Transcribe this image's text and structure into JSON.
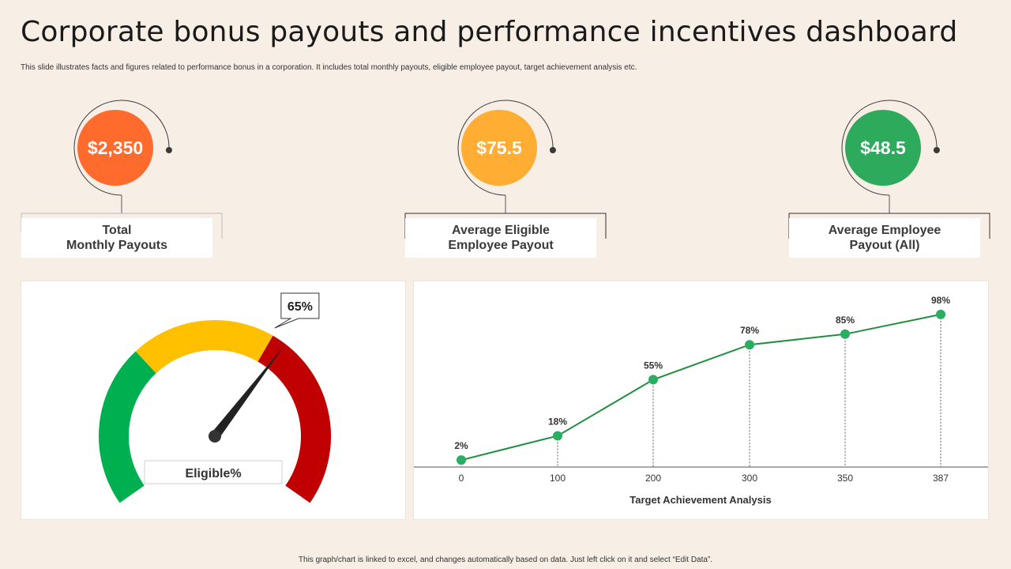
{
  "header": {
    "title": "Corporate bonus payouts and performance incentives dashboard",
    "subtitle": "This slide illustrates facts and figures related to performance bonus in a corporation. It includes total monthly payouts, eligible employee payout, target achievement analysis etc."
  },
  "kpis": [
    {
      "value": "$2,350",
      "label_line1": "Total",
      "label_line2": "Monthly Payouts",
      "color": "#ff6b2c"
    },
    {
      "value": "$75.5",
      "label_line1": "Average Eligible",
      "label_line2": "Employee Payout",
      "color": "#ffad33"
    },
    {
      "value": "$48.5",
      "label_line1": "Average Employee",
      "label_line2": "Payout (All)",
      "color": "#2eaa5c"
    }
  ],
  "gauge": {
    "value_label": "65%",
    "value": 65,
    "caption": "Eligible%",
    "colors": {
      "green": "#00b050",
      "yellow": "#ffc000",
      "red": "#c00000",
      "needle": "#222222"
    }
  },
  "chart_data": {
    "type": "line",
    "x": [
      "0",
      "100",
      "200",
      "300",
      "350",
      "387"
    ],
    "values": [
      2,
      18,
      55,
      78,
      85,
      98
    ],
    "data_labels": [
      "2%",
      "18%",
      "55%",
      "78%",
      "85%",
      "98%"
    ],
    "xlabel": "Target Achievement Analysis",
    "ylabel": "",
    "ylim": [
      0,
      100
    ],
    "grid": false,
    "line_color": "#1f8f3f",
    "marker_color": "#27ae60"
  },
  "footer": {
    "note": "This graph/chart is linked to excel, and changes automatically based on data. Just left click on it and select “Edit Data”."
  }
}
